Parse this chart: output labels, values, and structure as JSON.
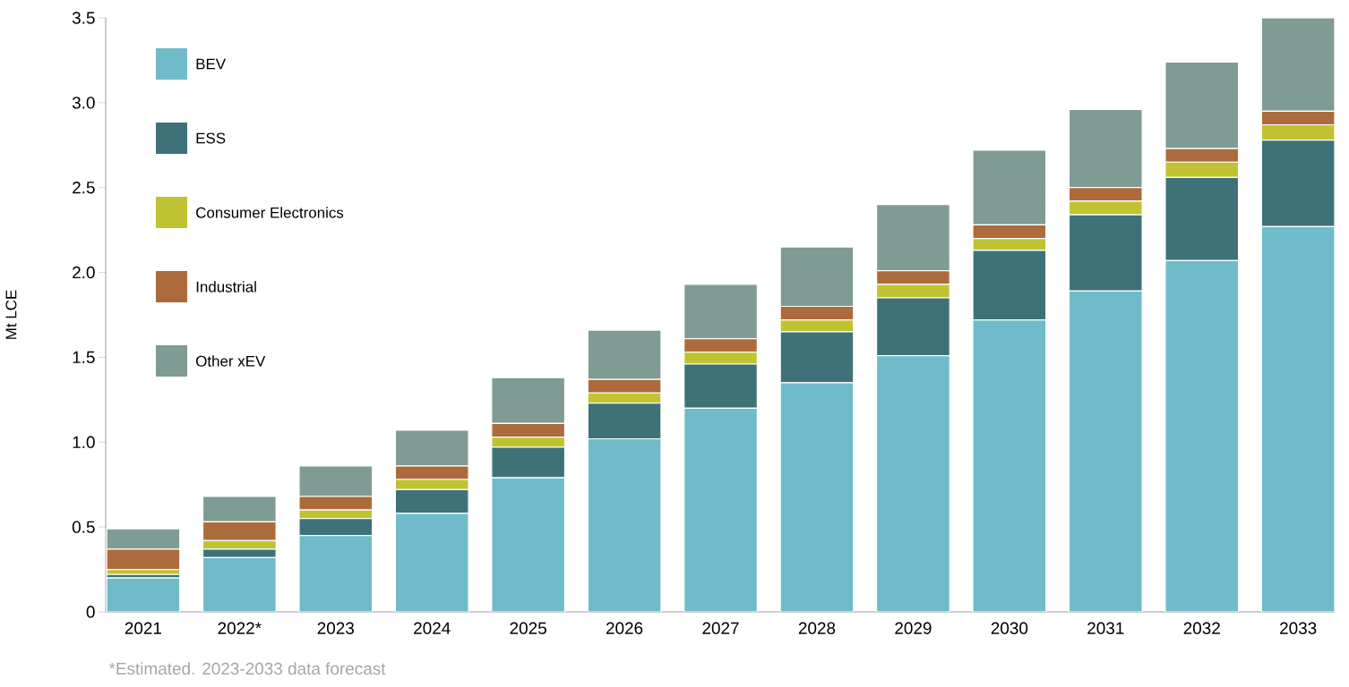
{
  "chart_data": {
    "type": "bar",
    "stacked": true,
    "ylabel": "Mt LCE",
    "categories": [
      "2021",
      "2022*",
      "2023",
      "2024",
      "2025",
      "2026",
      "2027",
      "2028",
      "2029",
      "2030",
      "2031",
      "2032",
      "2033"
    ],
    "series": [
      {
        "name": "BEV",
        "color": "#6fbbc9",
        "values": [
          0.2,
          0.32,
          0.45,
          0.58,
          0.79,
          1.02,
          1.2,
          1.35,
          1.51,
          1.72,
          1.89,
          2.07,
          2.27
        ]
      },
      {
        "name": "ESS",
        "color": "#3e7278",
        "values": [
          0.02,
          0.05,
          0.1,
          0.14,
          0.18,
          0.21,
          0.26,
          0.3,
          0.34,
          0.41,
          0.45,
          0.49,
          0.51
        ]
      },
      {
        "name": "Consumer Electronics",
        "color": "#c0c331",
        "values": [
          0.03,
          0.05,
          0.05,
          0.06,
          0.06,
          0.06,
          0.07,
          0.07,
          0.08,
          0.07,
          0.08,
          0.09,
          0.09
        ]
      },
      {
        "name": "Industrial",
        "color": "#ac6b3c",
        "values": [
          0.12,
          0.11,
          0.08,
          0.08,
          0.08,
          0.08,
          0.08,
          0.08,
          0.08,
          0.08,
          0.08,
          0.08,
          0.08
        ]
      },
      {
        "name": "Other xEV",
        "color": "#7e9b94",
        "values": [
          0.12,
          0.15,
          0.18,
          0.21,
          0.27,
          0.29,
          0.32,
          0.35,
          0.39,
          0.44,
          0.46,
          0.51,
          0.55
        ]
      }
    ],
    "ylim": [
      0,
      3.5
    ],
    "yticks": [
      {
        "value": 0,
        "label": "0"
      },
      0.5,
      {
        "value": 1,
        "label": "1.0"
      },
      1.5,
      {
        "value": 2,
        "label": "2.0"
      },
      2.5,
      {
        "value": 3,
        "label": "3.0"
      },
      3.5
    ],
    "grid": false,
    "legend": "top left",
    "annotations": [
      "*Estimated. 2023-2033 data forecast"
    ]
  }
}
